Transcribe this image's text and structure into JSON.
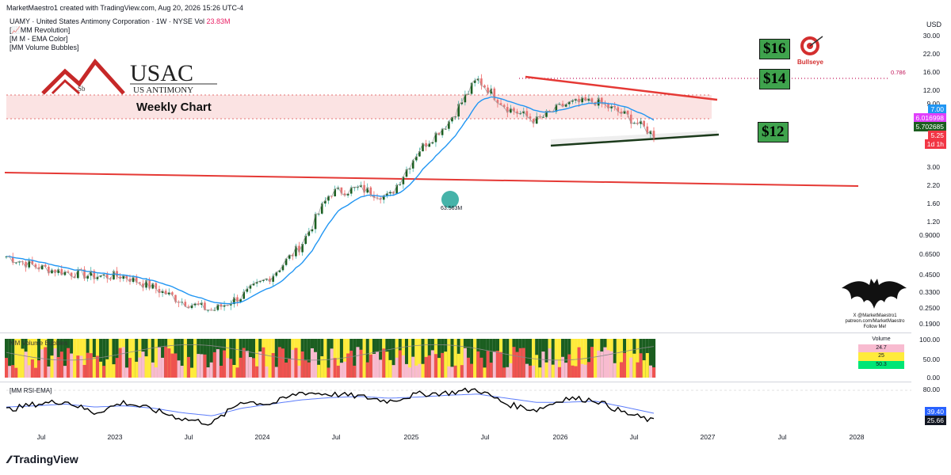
{
  "header": {
    "created_by": "MarketMaestro1 created with TradingView.com, Aug 20, 2026 15:26 UTC-4",
    "symbol_line": "UAMY · United States Antimony Corporation · 1W · NYSE",
    "volume_label": "Vol",
    "volume_value": "23.83M",
    "indicators": [
      "[📈MM Revolution]",
      "[M M - EMA Color]",
      "[MM Volume Bubbles]"
    ]
  },
  "logo": {
    "name": "USAC",
    "subtitle": "US ANTIMONY",
    "element": "Sb"
  },
  "annotations": {
    "weekly_chart": "Weekly Chart",
    "target_16": "$16",
    "target_14": "$14",
    "target_12": "$12",
    "bullseye": "Bullseye",
    "fib": "0.786",
    "bubble": "63.563M",
    "watermark_line1": "X @MarketMaestro1",
    "watermark_line2": "patreon.com/MarketMaestro",
    "watermark_line3": "Follow Me!"
  },
  "price_axis": {
    "currency": "USD",
    "ticks": [
      "30.00",
      "22.00",
      "16.00",
      "12.00",
      "9.00",
      "3.00",
      "2.20",
      "1.60",
      "1.20",
      "0.9000",
      "0.6500",
      "0.4500",
      "0.3300",
      "0.2500",
      "0.1900"
    ],
    "tags": [
      {
        "text": "7.00",
        "color": "#2196f3"
      },
      {
        "text": "6.016998",
        "color": "#e040fb"
      },
      {
        "text": "5.702685",
        "color": "#1b5e20"
      },
      {
        "text": "5.25",
        "color": "#f23645"
      },
      {
        "text": "1d 1h",
        "color": "#f23645"
      }
    ]
  },
  "volume_panel": {
    "title": "MM Volume Bubbles",
    "ticks": [
      "100.00",
      "50.00",
      "0.00"
    ],
    "legend": [
      {
        "text": "Volume",
        "color": "#ffffff",
        "fg": "#131722"
      },
      {
        "text": "24.7",
        "color": "#f8bbd0",
        "fg": "#131722"
      },
      {
        "text": "25",
        "color": "#ffeb3b",
        "fg": "#131722"
      },
      {
        "text": "50.3",
        "color": "#00e676",
        "fg": "#131722"
      }
    ]
  },
  "rsi_panel": {
    "title": "[MM RSI-EMA]",
    "ticks": [
      "80.00"
    ],
    "tags": [
      {
        "text": "39.40",
        "color": "#2962ff"
      },
      {
        "text": "25.66",
        "color": "#131722"
      }
    ]
  },
  "time_axis": [
    "Jul",
    "2023",
    "Jul",
    "2024",
    "Jul",
    "2025",
    "Jul",
    "2026",
    "Jul",
    "2027",
    "Jul",
    "2028"
  ],
  "footer": {
    "brand": "TradingView"
  },
  "chart_data": {
    "type": "line",
    "scale": "log",
    "x": [
      "2022-07",
      "2022-10",
      "2023-01",
      "2023-04",
      "2023-07",
      "2023-10",
      "2024-01",
      "2024-03",
      "2024-05",
      "2024-07",
      "2024-09",
      "2024-11",
      "2025-01",
      "2025-03",
      "2025-05",
      "2025-07",
      "2025-09",
      "2025-10",
      "2025-12",
      "2026-02",
      "2026-04",
      "2026-06",
      "2026-08"
    ],
    "series": [
      {
        "values": [
          0.62,
          0.52,
          0.47,
          0.44,
          0.44,
          0.36,
          0.28,
          0.24,
          0.31,
          0.44,
          0.75,
          1.9,
          2.05,
          1.75,
          4.0,
          6.5,
          14.0,
          8.5,
          6.7,
          9.0,
          9.5,
          7.5,
          5.25
        ]
      }
    ],
    "ylim": [
      0.17,
      33
    ],
    "rsi": [
      45,
      55,
      60,
      40,
      58,
      45,
      30,
      22,
      60,
      55,
      75,
      72,
      68,
      60,
      72,
      74,
      80,
      55,
      45,
      65,
      62,
      40,
      25.66
    ],
    "rsi_ema": [
      50,
      52,
      55,
      50,
      52,
      48,
      40,
      35,
      48,
      55,
      62,
      66,
      68,
      65,
      67,
      70,
      72,
      65,
      58,
      58,
      60,
      50,
      39.4
    ]
  }
}
